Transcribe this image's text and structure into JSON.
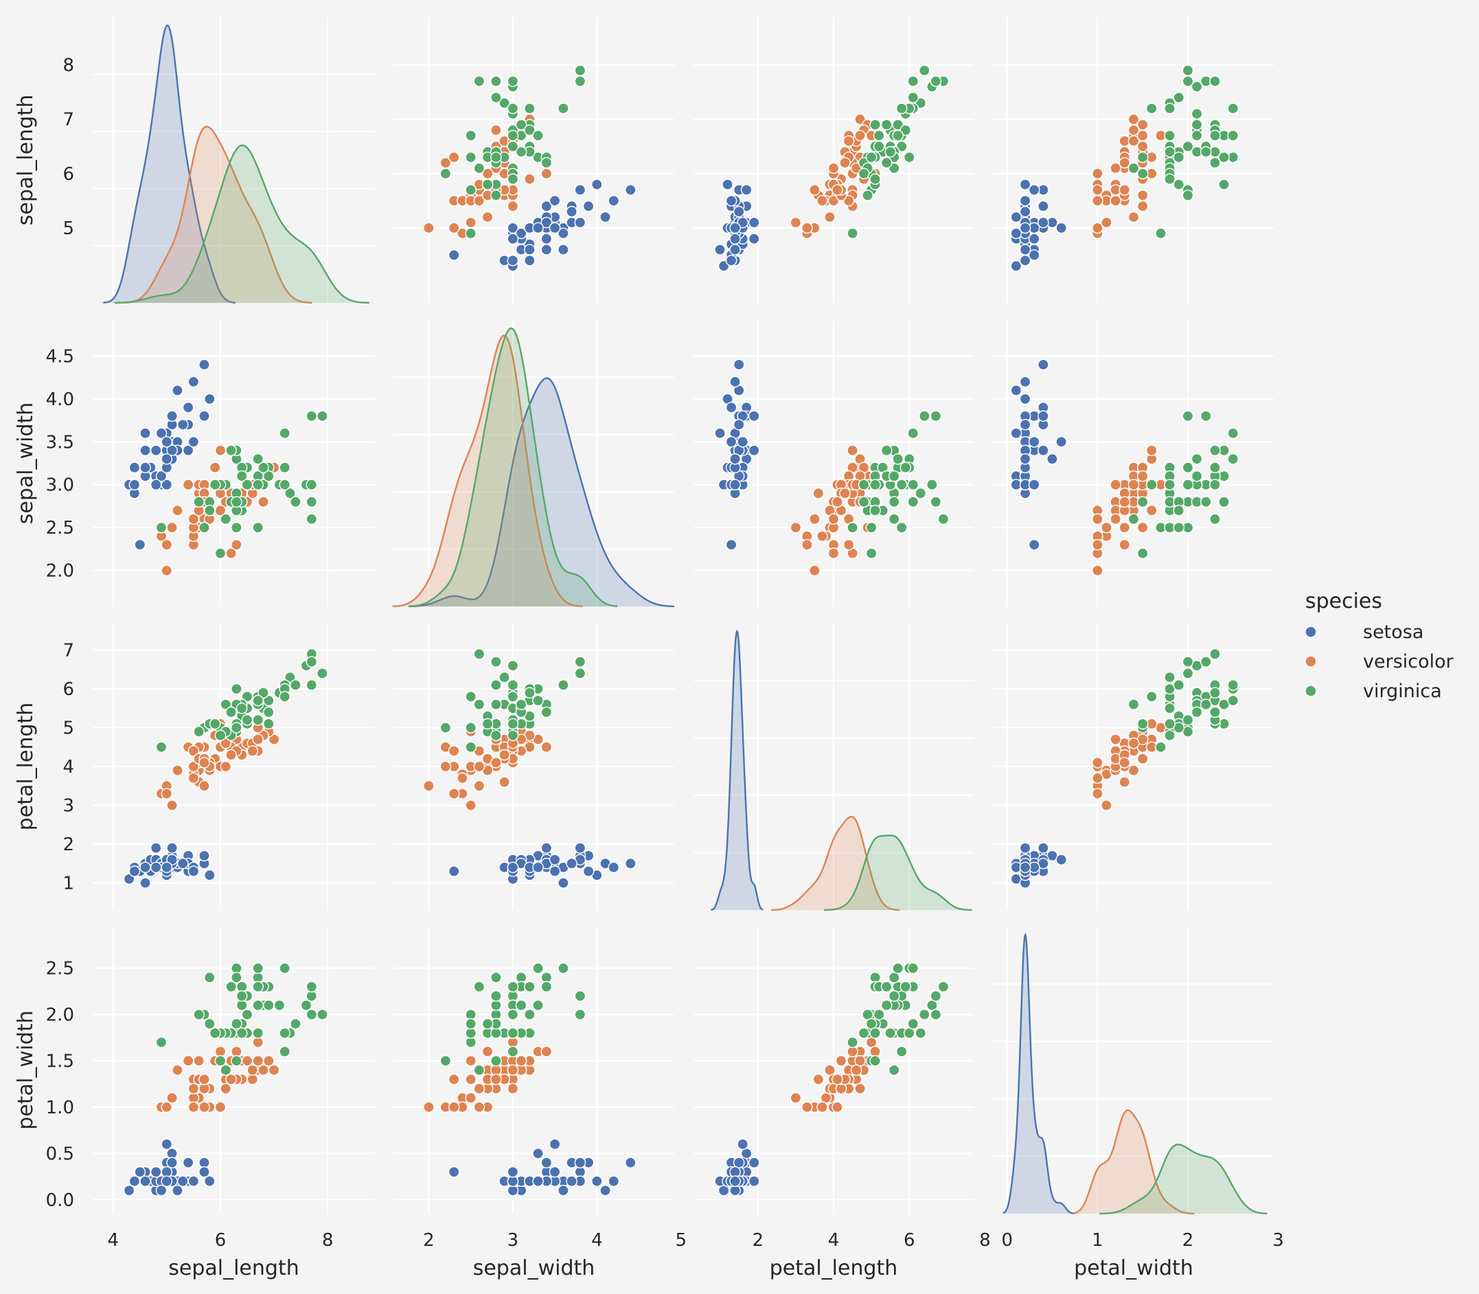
{
  "chart_data": {
    "type": "scatter",
    "kind": "pairplot",
    "variables": [
      "sepal_length",
      "sepal_width",
      "petal_length",
      "petal_width"
    ],
    "diagonal_kind": "kde",
    "grid": true,
    "legend": {
      "title": "species",
      "placement": "right",
      "entries": [
        "setosa",
        "versicolor",
        "virginica"
      ]
    },
    "colors": {
      "setosa": "#4c72b0",
      "versicolor": "#dd8452",
      "virginica": "#55a868",
      "background": "#f4f4f4",
      "grid": "#ffffff"
    },
    "axes": {
      "sepal_length": {
        "label": "sepal_length",
        "lim": [
          3.62,
          8.88
        ],
        "ticks": [
          "4",
          "6",
          "8"
        ],
        "row_ticks": [
          "5",
          "6",
          "7",
          "8"
        ]
      },
      "sepal_width": {
        "label": "sepal_width",
        "lim": [
          1.58,
          4.92
        ],
        "ticks": [
          "2",
          "3",
          "4",
          "5"
        ],
        "row_ticks": [
          "2.0",
          "2.5",
          "3.0",
          "3.5",
          "4.0",
          "4.5"
        ]
      },
      "petal_length": {
        "label": "petal_length",
        "lim": [
          0.3,
          7.7
        ],
        "ticks": [
          "2",
          "4",
          "6",
          "8"
        ],
        "row_ticks": [
          "1",
          "2",
          "3",
          "4",
          "5",
          "6",
          "7"
        ]
      },
      "petal_width": {
        "label": "petal_width",
        "lim": [
          -0.15,
          2.95
        ],
        "ticks": [
          "0",
          "1",
          "2",
          "3"
        ],
        "row_ticks": [
          "0.0",
          "0.5",
          "1.0",
          "1.5",
          "2.0",
          "2.5"
        ]
      }
    },
    "series": [
      {
        "name": "setosa",
        "values": [
          [
            5.1,
            3.5,
            1.4,
            0.2
          ],
          [
            4.9,
            3.0,
            1.4,
            0.2
          ],
          [
            4.7,
            3.2,
            1.3,
            0.2
          ],
          [
            4.6,
            3.1,
            1.5,
            0.2
          ],
          [
            5.0,
            3.6,
            1.4,
            0.2
          ],
          [
            5.4,
            3.9,
            1.7,
            0.4
          ],
          [
            4.6,
            3.4,
            1.4,
            0.3
          ],
          [
            5.0,
            3.4,
            1.5,
            0.2
          ],
          [
            4.4,
            2.9,
            1.4,
            0.2
          ],
          [
            4.9,
            3.1,
            1.5,
            0.1
          ],
          [
            5.4,
            3.7,
            1.5,
            0.2
          ],
          [
            4.8,
            3.4,
            1.6,
            0.2
          ],
          [
            4.8,
            3.0,
            1.4,
            0.1
          ],
          [
            4.3,
            3.0,
            1.1,
            0.1
          ],
          [
            5.8,
            4.0,
            1.2,
            0.2
          ],
          [
            5.7,
            4.4,
            1.5,
            0.4
          ],
          [
            5.4,
            3.9,
            1.3,
            0.4
          ],
          [
            5.1,
            3.5,
            1.4,
            0.3
          ],
          [
            5.7,
            3.8,
            1.7,
            0.3
          ],
          [
            5.1,
            3.8,
            1.5,
            0.3
          ],
          [
            5.4,
            3.4,
            1.7,
            0.2
          ],
          [
            5.1,
            3.7,
            1.5,
            0.4
          ],
          [
            4.6,
            3.6,
            1.0,
            0.2
          ],
          [
            5.1,
            3.3,
            1.7,
            0.5
          ],
          [
            4.8,
            3.4,
            1.9,
            0.2
          ],
          [
            5.0,
            3.0,
            1.6,
            0.2
          ],
          [
            5.0,
            3.4,
            1.6,
            0.4
          ],
          [
            5.2,
            3.5,
            1.5,
            0.2
          ],
          [
            5.2,
            3.4,
            1.4,
            0.2
          ],
          [
            4.7,
            3.2,
            1.6,
            0.2
          ],
          [
            4.8,
            3.1,
            1.6,
            0.2
          ],
          [
            5.4,
            3.4,
            1.5,
            0.4
          ],
          [
            5.2,
            4.1,
            1.5,
            0.1
          ],
          [
            5.5,
            4.2,
            1.4,
            0.2
          ],
          [
            4.9,
            3.1,
            1.5,
            0.2
          ],
          [
            5.0,
            3.2,
            1.2,
            0.2
          ],
          [
            5.5,
            3.5,
            1.3,
            0.2
          ],
          [
            4.9,
            3.6,
            1.4,
            0.1
          ],
          [
            4.4,
            3.0,
            1.3,
            0.2
          ],
          [
            5.1,
            3.4,
            1.5,
            0.2
          ],
          [
            5.0,
            3.5,
            1.3,
            0.3
          ],
          [
            4.5,
            2.3,
            1.3,
            0.3
          ],
          [
            4.4,
            3.2,
            1.3,
            0.2
          ],
          [
            5.0,
            3.5,
            1.6,
            0.6
          ],
          [
            5.1,
            3.8,
            1.9,
            0.4
          ],
          [
            4.8,
            3.0,
            1.4,
            0.3
          ],
          [
            5.1,
            3.8,
            1.6,
            0.2
          ],
          [
            4.6,
            3.2,
            1.4,
            0.2
          ],
          [
            5.3,
            3.7,
            1.5,
            0.2
          ],
          [
            5.0,
            3.3,
            1.4,
            0.2
          ]
        ]
      },
      {
        "name": "versicolor",
        "values": [
          [
            7.0,
            3.2,
            4.7,
            1.4
          ],
          [
            6.4,
            3.2,
            4.5,
            1.5
          ],
          [
            6.9,
            3.1,
            4.9,
            1.5
          ],
          [
            5.5,
            2.3,
            4.0,
            1.3
          ],
          [
            6.5,
            2.8,
            4.6,
            1.5
          ],
          [
            5.7,
            2.8,
            4.5,
            1.3
          ],
          [
            6.3,
            3.3,
            4.7,
            1.6
          ],
          [
            4.9,
            2.4,
            3.3,
            1.0
          ],
          [
            6.6,
            2.9,
            4.6,
            1.3
          ],
          [
            5.2,
            2.7,
            3.9,
            1.4
          ],
          [
            5.0,
            2.0,
            3.5,
            1.0
          ],
          [
            5.9,
            3.0,
            4.2,
            1.5
          ],
          [
            6.0,
            2.2,
            4.0,
            1.0
          ],
          [
            6.1,
            2.9,
            4.7,
            1.4
          ],
          [
            5.6,
            2.9,
            3.6,
            1.3
          ],
          [
            6.7,
            3.1,
            4.4,
            1.4
          ],
          [
            5.6,
            3.0,
            4.5,
            1.5
          ],
          [
            5.8,
            2.7,
            4.1,
            1.0
          ],
          [
            6.2,
            2.2,
            4.5,
            1.5
          ],
          [
            5.6,
            2.5,
            3.9,
            1.1
          ],
          [
            5.9,
            3.2,
            4.8,
            1.8
          ],
          [
            6.1,
            2.8,
            4.0,
            1.3
          ],
          [
            6.3,
            2.5,
            4.9,
            1.5
          ],
          [
            6.1,
            2.8,
            4.7,
            1.2
          ],
          [
            6.4,
            2.9,
            4.3,
            1.3
          ],
          [
            6.6,
            3.0,
            4.4,
            1.4
          ],
          [
            6.8,
            2.8,
            4.8,
            1.4
          ],
          [
            6.7,
            3.0,
            5.0,
            1.7
          ],
          [
            6.0,
            2.9,
            4.5,
            1.5
          ],
          [
            5.7,
            2.6,
            3.5,
            1.0
          ],
          [
            5.5,
            2.4,
            3.8,
            1.1
          ],
          [
            5.5,
            2.4,
            3.7,
            1.0
          ],
          [
            5.8,
            2.7,
            3.9,
            1.2
          ],
          [
            6.0,
            2.7,
            5.1,
            1.6
          ],
          [
            5.4,
            3.0,
            4.5,
            1.5
          ],
          [
            6.0,
            3.4,
            4.5,
            1.6
          ],
          [
            6.7,
            3.1,
            4.7,
            1.5
          ],
          [
            6.3,
            2.3,
            4.4,
            1.3
          ],
          [
            5.6,
            3.0,
            4.1,
            1.3
          ],
          [
            5.5,
            2.5,
            4.0,
            1.3
          ],
          [
            5.5,
            2.6,
            4.4,
            1.2
          ],
          [
            6.1,
            3.0,
            4.6,
            1.4
          ],
          [
            5.8,
            2.6,
            4.0,
            1.2
          ],
          [
            5.0,
            2.3,
            3.3,
            1.0
          ],
          [
            5.6,
            2.7,
            4.2,
            1.3
          ],
          [
            5.7,
            3.0,
            4.2,
            1.2
          ],
          [
            5.7,
            2.9,
            4.2,
            1.3
          ],
          [
            6.2,
            2.9,
            4.3,
            1.3
          ],
          [
            5.1,
            2.5,
            3.0,
            1.1
          ],
          [
            5.7,
            2.8,
            4.1,
            1.3
          ]
        ]
      },
      {
        "name": "virginica",
        "values": [
          [
            6.3,
            3.3,
            6.0,
            2.5
          ],
          [
            5.8,
            2.7,
            5.1,
            1.9
          ],
          [
            7.1,
            3.0,
            5.9,
            2.1
          ],
          [
            6.3,
            2.9,
            5.6,
            1.8
          ],
          [
            6.5,
            3.0,
            5.8,
            2.2
          ],
          [
            7.6,
            3.0,
            6.6,
            2.1
          ],
          [
            4.9,
            2.5,
            4.5,
            1.7
          ],
          [
            7.3,
            2.9,
            6.3,
            1.8
          ],
          [
            6.7,
            2.5,
            5.8,
            1.8
          ],
          [
            7.2,
            3.6,
            6.1,
            2.5
          ],
          [
            6.5,
            3.2,
            5.1,
            2.0
          ],
          [
            6.4,
            2.7,
            5.3,
            1.9
          ],
          [
            6.8,
            3.0,
            5.5,
            2.1
          ],
          [
            5.7,
            2.5,
            5.0,
            2.0
          ],
          [
            5.8,
            2.8,
            5.1,
            2.4
          ],
          [
            6.4,
            3.2,
            5.3,
            2.3
          ],
          [
            6.5,
            3.0,
            5.5,
            1.8
          ],
          [
            7.7,
            3.8,
            6.7,
            2.2
          ],
          [
            7.7,
            2.6,
            6.9,
            2.3
          ],
          [
            6.0,
            2.2,
            5.0,
            1.5
          ],
          [
            6.9,
            3.2,
            5.7,
            2.3
          ],
          [
            5.6,
            2.8,
            4.9,
            2.0
          ],
          [
            7.7,
            2.8,
            6.7,
            2.0
          ],
          [
            6.3,
            2.7,
            4.9,
            1.8
          ],
          [
            6.7,
            3.3,
            5.7,
            2.1
          ],
          [
            7.2,
            3.2,
            6.0,
            1.8
          ],
          [
            6.2,
            2.8,
            4.8,
            1.8
          ],
          [
            6.1,
            3.0,
            4.9,
            1.8
          ],
          [
            6.4,
            2.8,
            5.6,
            2.1
          ],
          [
            7.2,
            3.0,
            5.8,
            1.6
          ],
          [
            7.4,
            2.8,
            6.1,
            1.9
          ],
          [
            7.9,
            3.8,
            6.4,
            2.0
          ],
          [
            6.4,
            2.8,
            5.6,
            2.2
          ],
          [
            6.3,
            2.8,
            5.1,
            1.5
          ],
          [
            6.1,
            2.6,
            5.6,
            1.4
          ],
          [
            7.7,
            3.0,
            6.1,
            2.3
          ],
          [
            6.3,
            3.4,
            5.6,
            2.4
          ],
          [
            6.4,
            3.1,
            5.5,
            1.8
          ],
          [
            6.0,
            3.0,
            4.8,
            1.8
          ],
          [
            6.9,
            3.1,
            5.4,
            2.1
          ],
          [
            6.7,
            3.1,
            5.6,
            2.4
          ],
          [
            6.9,
            3.1,
            5.1,
            2.3
          ],
          [
            5.8,
            2.7,
            5.1,
            1.9
          ],
          [
            6.8,
            3.2,
            5.9,
            2.3
          ],
          [
            6.7,
            3.3,
            5.7,
            2.5
          ],
          [
            6.7,
            3.0,
            5.2,
            2.3
          ],
          [
            6.3,
            2.5,
            5.0,
            1.9
          ],
          [
            6.5,
            3.0,
            5.2,
            2.0
          ],
          [
            6.2,
            3.4,
            5.4,
            2.3
          ],
          [
            5.9,
            3.0,
            5.1,
            1.8
          ]
        ]
      }
    ]
  }
}
